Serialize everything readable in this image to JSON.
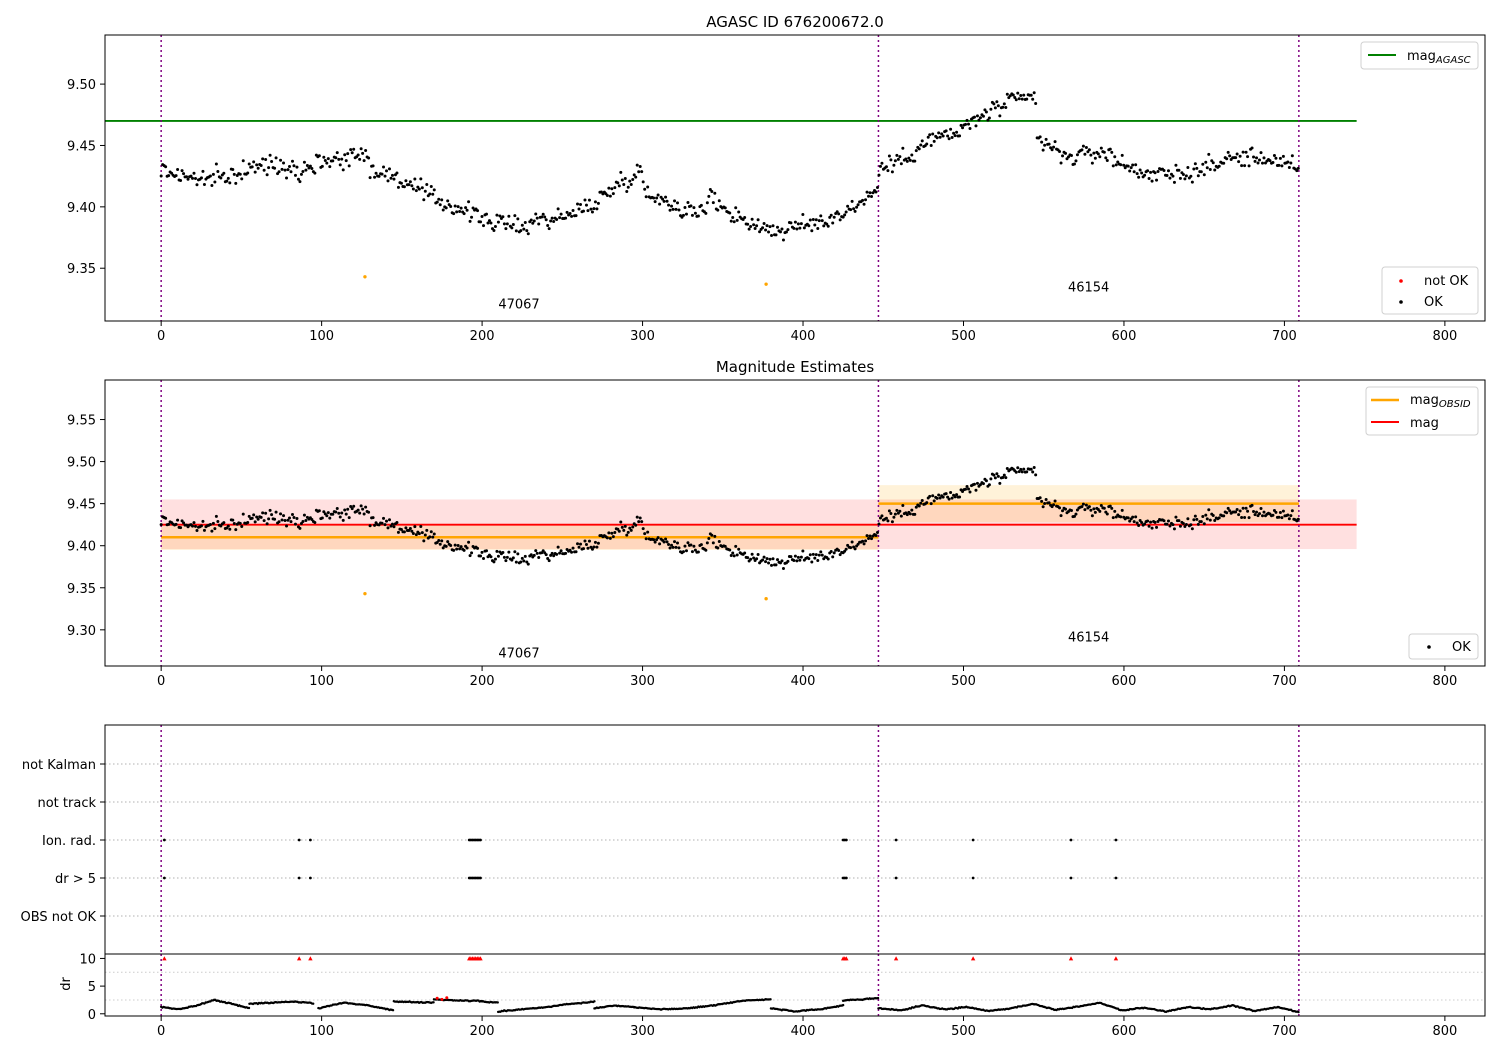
{
  "chart_data": [
    {
      "type": "scatter",
      "title": "AGASC ID 676200672.0",
      "xlim": [
        -35,
        825
      ],
      "ylim": [
        9.307,
        9.54
      ],
      "xticks": [
        0,
        100,
        200,
        300,
        400,
        500,
        600,
        700,
        800
      ],
      "yticks": [
        "9.35",
        "9.40",
        "9.45",
        "9.50"
      ],
      "grid": false,
      "obs_boundaries": [
        0,
        447,
        709
      ],
      "obs_labels": [
        {
          "text": "47067",
          "x": 223,
          "y": 9.317
        },
        {
          "text": "46154",
          "x": 578,
          "y": 9.331
        }
      ],
      "reference_line": {
        "name": "mag_AGASC",
        "legend_label": "mag",
        "legend_sub": "AGASC",
        "value": 9.47,
        "x_end": 745,
        "color": "#008000"
      },
      "outliers": [
        {
          "x": 127,
          "y": 9.343
        },
        {
          "x": 377,
          "y": 9.337
        }
      ],
      "series": [
        {
          "name": "not OK",
          "color": "#ff0000"
        },
        {
          "name": "OK",
          "color": "#000000",
          "segments": [
            {
              "x0": 0,
              "x1": 130,
              "values": [
                9.43,
                9.425,
                9.422,
                9.425,
                9.432,
                9.435,
                9.43,
                9.438,
                9.44,
                9.445
              ]
            },
            {
              "x0": 130,
              "x1": 230,
              "values": [
                9.43,
                9.425,
                9.415,
                9.405,
                9.398,
                9.39,
                9.385,
                9.385
              ]
            },
            {
              "x0": 230,
              "x1": 300,
              "values": [
                9.39,
                9.39,
                9.395,
                9.405,
                9.42,
                9.43
              ]
            },
            {
              "x0": 300,
              "x1": 340,
              "values": [
                9.415,
                9.405,
                9.398,
                9.395
              ]
            },
            {
              "x0": 340,
              "x1": 447,
              "values": [
                9.41,
                9.395,
                9.385,
                9.38,
                9.385,
                9.39,
                9.4,
                9.415
              ]
            },
            {
              "x0": 447,
              "x1": 545,
              "values": [
                9.43,
                9.44,
                9.455,
                9.46,
                9.475,
                9.485,
                9.49
              ]
            },
            {
              "x0": 545,
              "x1": 709,
              "values": [
                9.455,
                9.44,
                9.445,
                9.43,
                9.425,
                9.43,
                9.44,
                9.44,
                9.43
              ]
            }
          ]
        }
      ],
      "legend_main": "top-right",
      "legend_points": "bottom-right"
    },
    {
      "type": "scatter",
      "title": "Magnitude Estimates",
      "xlim": [
        -35,
        825
      ],
      "ylim": [
        9.257,
        9.597
      ],
      "xticks": [
        0,
        100,
        200,
        300,
        400,
        500,
        600,
        700,
        800
      ],
      "yticks": [
        "9.30",
        "9.35",
        "9.40",
        "9.45",
        "9.50",
        "9.55"
      ],
      "grid": false,
      "obs_boundaries": [
        0,
        447,
        709
      ],
      "obs_labels": [
        {
          "text": "47067",
          "x": 223,
          "y": 9.267
        },
        {
          "text": "46154",
          "x": 578,
          "y": 9.286
        }
      ],
      "mag_obsid": [
        {
          "x0": 0,
          "x1": 447,
          "value": 9.41,
          "band": [
            9.395,
            9.425
          ]
        },
        {
          "x0": 447,
          "x1": 709,
          "value": 9.45,
          "band": [
            9.428,
            9.472
          ]
        }
      ],
      "mag": {
        "value": 9.425,
        "band": [
          9.396,
          9.455
        ],
        "x_end": 745
      },
      "outliers": [
        {
          "x": 127,
          "y": 9.343
        },
        {
          "x": 377,
          "y": 9.337
        }
      ],
      "series": [
        {
          "name": "mag_OBSID",
          "legend_label": "mag",
          "legend_sub": "OBSID",
          "color": "#ffa500"
        },
        {
          "name": "mag",
          "color": "#ff0000"
        },
        {
          "name": "OK",
          "color": "#000000"
        }
      ],
      "legend_main": "top-right",
      "legend_points": "bottom-right"
    },
    {
      "type": "scatter",
      "categories": [
        "not Kalman",
        "not track",
        "Ion. rad.",
        "dr > 5",
        "OBS not OK"
      ],
      "flag_events": {
        "Ion. rad.": [
          2,
          86,
          93,
          192,
          193,
          194,
          195,
          196,
          197,
          198,
          199,
          425,
          426,
          427,
          458,
          506,
          567,
          595
        ],
        "dr > 5": [
          2,
          86,
          93,
          192,
          193,
          194,
          195,
          196,
          197,
          198,
          199,
          425,
          426,
          427,
          458,
          506,
          567,
          595
        ]
      },
      "obs_boundaries": [
        0,
        447,
        709
      ],
      "grid": true
    },
    {
      "type": "scatter",
      "ylabel": "dr",
      "xlim": [
        -35,
        825
      ],
      "ylim": [
        -0.4,
        10.8
      ],
      "xticks": [
        0,
        100,
        200,
        300,
        400,
        500,
        600,
        700,
        800
      ],
      "yticks": [
        "0",
        "5",
        "10"
      ],
      "clipped_value": 10,
      "clipped_x": [
        2,
        86,
        93,
        192,
        193,
        194,
        195,
        196,
        197,
        198,
        199,
        425,
        426,
        427,
        458,
        506,
        567,
        595
      ],
      "red_points": [
        {
          "x": 172,
          "y": 2.8
        },
        {
          "x": 175,
          "y": 2.6
        },
        {
          "x": 178,
          "y": 2.9
        }
      ],
      "dr_segments": [
        {
          "x0": 0,
          "x1": 55,
          "values": [
            1.2,
            0.8,
            1.5,
            2.5,
            1.8,
            1.0
          ]
        },
        {
          "x0": 55,
          "x1": 95,
          "values": [
            1.8,
            2.0,
            2.2,
            1.9
          ]
        },
        {
          "x0": 98,
          "x1": 145,
          "values": [
            1.0,
            2.0,
            1.5,
            0.6
          ]
        },
        {
          "x0": 145,
          "x1": 170,
          "values": [
            2.2,
            2.1,
            2.0
          ]
        },
        {
          "x0": 170,
          "x1": 200,
          "values": [
            2.6,
            2.4,
            2.3
          ]
        },
        {
          "x0": 200,
          "x1": 210,
          "values": [
            2.2,
            2.0
          ]
        },
        {
          "x0": 210,
          "x1": 270,
          "values": [
            0.4,
            0.8,
            1.2,
            1.8,
            2.2
          ]
        },
        {
          "x0": 270,
          "x1": 295,
          "values": [
            1.0,
            1.5,
            1.2
          ]
        },
        {
          "x0": 295,
          "x1": 380,
          "values": [
            1.2,
            0.8,
            1.0,
            1.6,
            2.4,
            2.6
          ]
        },
        {
          "x0": 380,
          "x1": 425,
          "values": [
            1.0,
            0.4,
            0.8,
            1.5
          ]
        },
        {
          "x0": 425,
          "x1": 447,
          "values": [
            2.4,
            2.6,
            2.8
          ]
        },
        {
          "x0": 447,
          "x1": 709,
          "values": [
            1.0,
            0.6,
            1.5,
            0.8,
            1.2,
            0.5,
            1.0,
            1.8,
            0.7,
            1.3,
            2.0,
            0.6,
            1.1,
            0.4,
            1.2,
            0.8,
            1.5,
            0.5,
            1.2,
            0.3
          ]
        }
      ]
    }
  ]
}
